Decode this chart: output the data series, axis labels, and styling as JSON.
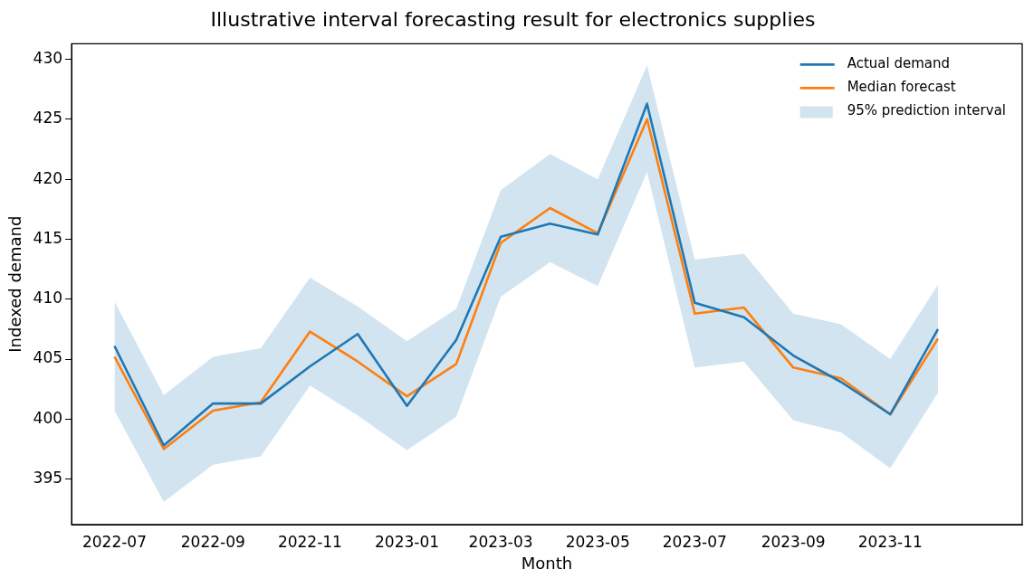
{
  "chart_data": {
    "type": "line",
    "title": "Illustrative interval forecasting result for electronics supplies",
    "xlabel": "Month",
    "ylabel": "Indexed demand",
    "x": [
      "2022-07",
      "2022-08",
      "2022-09",
      "2022-10",
      "2022-11",
      "2022-12",
      "2023-01",
      "2023-02",
      "2023-03",
      "2023-04",
      "2023-05",
      "2023-06",
      "2023-07",
      "2023-08",
      "2023-09",
      "2023-10",
      "2023-11",
      "2023-12"
    ],
    "series": [
      {
        "name": "Actual demand",
        "color": "#1f77b4",
        "values": [
          406.1,
          397.8,
          401.3,
          401.3,
          404.4,
          407.1,
          401.1,
          406.6,
          415.2,
          416.3,
          415.4,
          426.3,
          409.7,
          408.5,
          405.3,
          403.1,
          400.4,
          407.5
        ]
      },
      {
        "name": "Median forecast",
        "color": "#ff7f0e",
        "values": [
          405.2,
          397.5,
          400.7,
          401.4,
          407.3,
          404.8,
          401.9,
          404.6,
          414.7,
          417.6,
          415.5,
          425.0,
          408.8,
          409.3,
          404.3,
          403.4,
          400.4,
          406.7
        ],
        "lower": [
          400.7,
          393.1,
          396.2,
          396.9,
          402.8,
          400.3,
          397.4,
          400.2,
          410.2,
          413.1,
          411.1,
          420.6,
          404.3,
          404.8,
          399.9,
          398.9,
          395.9,
          402.2
        ],
        "upper": [
          409.8,
          402.0,
          405.2,
          405.9,
          411.8,
          409.4,
          406.5,
          409.2,
          419.1,
          422.1,
          420.0,
          429.5,
          413.3,
          413.8,
          408.8,
          407.9,
          405.0,
          411.2
        ]
      },
      {
        "name": "95% prediction interval",
        "type": "area",
        "color": "#d2e4f0",
        "values": [
          null,
          null,
          null,
          null,
          null,
          null,
          null,
          null,
          null,
          null,
          null,
          null,
          null,
          null,
          null,
          null,
          null,
          null
        ]
      }
    ],
    "xlim": [
      "2022-06-04",
      "2024-01-23"
    ],
    "xticks": [
      "2022-07",
      "2022-09",
      "2022-11",
      "2023-01",
      "2023-03",
      "2023-05",
      "2023-07",
      "2023-09",
      "2023-11"
    ],
    "ylim": [
      391.2,
      431.3
    ],
    "yticks": [
      395,
      400,
      405,
      410,
      415,
      420,
      425,
      430
    ],
    "grid": false,
    "legend": "top right",
    "line_style": "solid",
    "marker": "none"
  }
}
